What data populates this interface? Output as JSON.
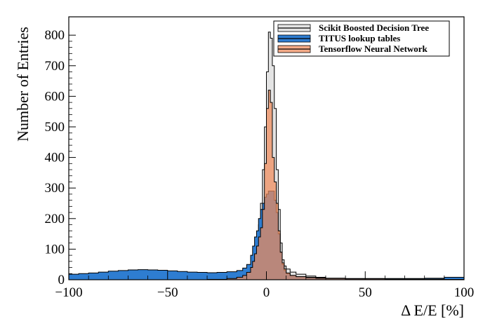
{
  "chart_data": {
    "type": "histogram",
    "xlabel": "Δ E/E [%]",
    "ylabel": "Number of Entries",
    "xlim": [
      -100,
      100
    ],
    "ylim": [
      0,
      860
    ],
    "x_ticks": [
      -100,
      -50,
      0,
      50,
      100
    ],
    "x_tick_labels": [
      "−100",
      "−50",
      "0",
      "50",
      "100"
    ],
    "y_ticks": [
      0,
      100,
      200,
      300,
      400,
      500,
      600,
      700,
      800
    ],
    "y_tick_labels": [
      "0",
      "100",
      "200",
      "300",
      "400",
      "500",
      "600",
      "700",
      "800"
    ],
    "grid": false,
    "legend_position": "top-right",
    "series": [
      {
        "name": "Scikit Boosted Decision Tree",
        "color": "#000000",
        "fill": "#e4e4e4",
        "points": [
          [
            -100,
            0
          ],
          [
            -90,
            0
          ],
          [
            -80,
            0
          ],
          [
            -70,
            0
          ],
          [
            -60,
            0
          ],
          [
            -50,
            0
          ],
          [
            -40,
            0
          ],
          [
            -30,
            0
          ],
          [
            -20,
            2
          ],
          [
            -15,
            8
          ],
          [
            -12,
            15
          ],
          [
            -10,
            30
          ],
          [
            -8,
            55
          ],
          [
            -7,
            80
          ],
          [
            -6,
            105
          ],
          [
            -5,
            135
          ],
          [
            -4,
            180
          ],
          [
            -3,
            250
          ],
          [
            -2,
            360
          ],
          [
            -1,
            500
          ],
          [
            0,
            680
          ],
          [
            1,
            810
          ],
          [
            2,
            790
          ],
          [
            3,
            700
          ],
          [
            4,
            560
          ],
          [
            5,
            360
          ],
          [
            6,
            230
          ],
          [
            7,
            120
          ],
          [
            8,
            65
          ],
          [
            9,
            45
          ],
          [
            10,
            35
          ],
          [
            12,
            25
          ],
          [
            15,
            18
          ],
          [
            20,
            12
          ],
          [
            25,
            8
          ],
          [
            30,
            5
          ],
          [
            40,
            3
          ],
          [
            50,
            2
          ],
          [
            60,
            1
          ],
          [
            70,
            1
          ],
          [
            80,
            1
          ],
          [
            90,
            0
          ],
          [
            100,
            0
          ]
        ]
      },
      {
        "name": "TITUS lookup tables",
        "color": "#000000",
        "fill": "#2e7dd1",
        "points": [
          [
            -100,
            18
          ],
          [
            -95,
            20
          ],
          [
            -90,
            22
          ],
          [
            -85,
            25
          ],
          [
            -80,
            28
          ],
          [
            -75,
            30
          ],
          [
            -70,
            32
          ],
          [
            -65,
            33
          ],
          [
            -60,
            32
          ],
          [
            -55,
            31
          ],
          [
            -50,
            29
          ],
          [
            -45,
            27
          ],
          [
            -40,
            25
          ],
          [
            -35,
            24
          ],
          [
            -30,
            23
          ],
          [
            -25,
            24
          ],
          [
            -20,
            26
          ],
          [
            -15,
            30
          ],
          [
            -12,
            38
          ],
          [
            -10,
            50
          ],
          [
            -8,
            80
          ],
          [
            -7,
            110
          ],
          [
            -6,
            140
          ],
          [
            -5,
            160
          ],
          [
            -4,
            200
          ],
          [
            -3,
            230
          ],
          [
            -2,
            250
          ],
          [
            -1,
            270
          ],
          [
            0,
            280
          ],
          [
            1,
            290
          ],
          [
            2,
            290
          ],
          [
            3,
            290
          ],
          [
            4,
            260
          ],
          [
            5,
            220
          ],
          [
            6,
            150
          ],
          [
            7,
            90
          ],
          [
            8,
            50
          ],
          [
            9,
            30
          ],
          [
            10,
            20
          ],
          [
            12,
            14
          ],
          [
            15,
            10
          ],
          [
            20,
            8
          ],
          [
            25,
            6
          ],
          [
            30,
            5
          ],
          [
            40,
            4
          ],
          [
            50,
            4
          ],
          [
            60,
            4
          ],
          [
            70,
            4
          ],
          [
            80,
            5
          ],
          [
            90,
            8
          ],
          [
            100,
            25
          ]
        ]
      },
      {
        "name": "Tensorflow Neural Network",
        "color": "#000000",
        "fill": "#f08a5a",
        "points": [
          [
            -100,
            0
          ],
          [
            -90,
            0
          ],
          [
            -80,
            0
          ],
          [
            -70,
            0
          ],
          [
            -60,
            0
          ],
          [
            -50,
            0
          ],
          [
            -40,
            0
          ],
          [
            -30,
            1
          ],
          [
            -20,
            4
          ],
          [
            -15,
            8
          ],
          [
            -12,
            14
          ],
          [
            -10,
            24
          ],
          [
            -8,
            40
          ],
          [
            -7,
            60
          ],
          [
            -6,
            85
          ],
          [
            -5,
            110
          ],
          [
            -4,
            140
          ],
          [
            -3,
            170
          ],
          [
            -2,
            230
          ],
          [
            -1,
            380
          ],
          [
            0,
            560
          ],
          [
            1,
            620
          ],
          [
            2,
            580
          ],
          [
            3,
            400
          ],
          [
            4,
            320
          ],
          [
            5,
            250
          ],
          [
            6,
            160
          ],
          [
            7,
            90
          ],
          [
            8,
            55
          ],
          [
            9,
            35
          ],
          [
            10,
            22
          ],
          [
            12,
            14
          ],
          [
            15,
            10
          ],
          [
            20,
            7
          ],
          [
            25,
            5
          ],
          [
            30,
            4
          ],
          [
            40,
            3
          ],
          [
            50,
            3
          ],
          [
            60,
            2
          ],
          [
            70,
            2
          ],
          [
            80,
            2
          ],
          [
            90,
            1
          ],
          [
            100,
            0
          ]
        ]
      }
    ]
  }
}
